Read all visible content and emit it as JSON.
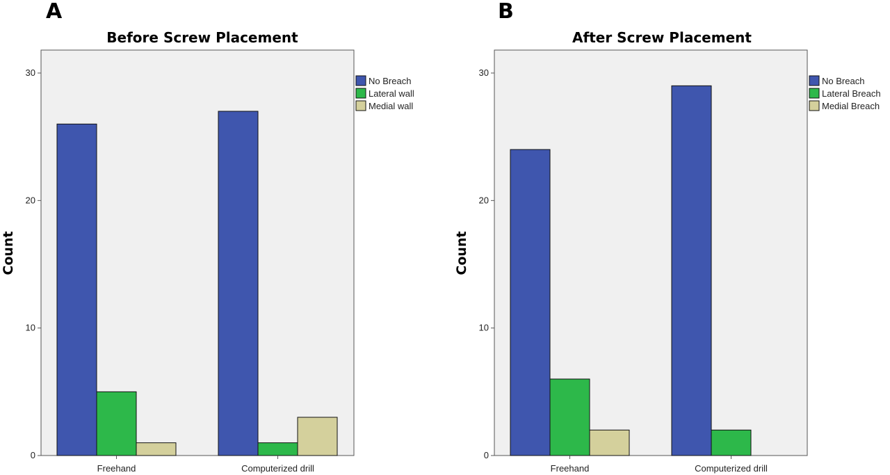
{
  "figure": {
    "panels": [
      {
        "letter": "A"
      },
      {
        "letter": "B"
      }
    ]
  },
  "chart_data": [
    {
      "type": "bar",
      "title": "Before Screw Placement",
      "xlabel": "",
      "ylabel": "Count",
      "ylim": [
        0,
        31.8
      ],
      "yticks": [
        0,
        10,
        20,
        30
      ],
      "categories": [
        "Freehand",
        "Computerized drill"
      ],
      "series": [
        {
          "name": "No Breach",
          "color": "#3F56AE",
          "values": [
            26,
            27
          ]
        },
        {
          "name": "Lateral wall",
          "color": "#2DB84A",
          "values": [
            5,
            1
          ]
        },
        {
          "name": "Medial wall",
          "color": "#D4D09C",
          "values": [
            1,
            3
          ]
        }
      ],
      "grid": false,
      "legend": "top-right",
      "plot_background": "#F0F0F0"
    },
    {
      "type": "bar",
      "title": "After Screw Placement",
      "xlabel": "",
      "ylabel": "Count",
      "ylim": [
        0,
        31.8
      ],
      "yticks": [
        0,
        10,
        20,
        30
      ],
      "categories": [
        "Freehand",
        "Computerized drill"
      ],
      "series": [
        {
          "name": "No Breach",
          "color": "#3F56AE",
          "values": [
            24,
            29
          ]
        },
        {
          "name": "Lateral Breach",
          "color": "#2DB84A",
          "values": [
            6,
            2
          ]
        },
        {
          "name": "Medial Breach",
          "color": "#D4D09C",
          "values": [
            2,
            0
          ]
        }
      ],
      "grid": false,
      "legend": "top-right",
      "plot_background": "#F0F0F0"
    }
  ]
}
